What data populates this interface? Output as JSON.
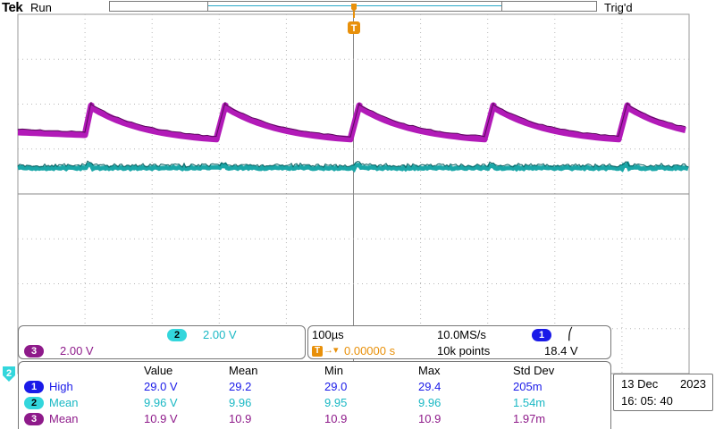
{
  "header": {
    "brand": "Tek",
    "run_state": "Run",
    "trigger_state": "Trig'd"
  },
  "markers": {
    "trigger": "T",
    "channel2_ref": "2"
  },
  "channel_panel": {
    "ch2_badge": "2",
    "ch2_scale": "2.00 V",
    "ch3_badge": "3",
    "ch3_scale": "2.00 V"
  },
  "timebase_panel": {
    "time_per_div": "100µs",
    "sample_rate": "10.0MS/s",
    "trigger_pos": "0.00000 s",
    "record_length": "10k points",
    "trig_source_badge": "1",
    "trig_slope": "⎛",
    "trig_level": "18.4 V"
  },
  "measurements": {
    "headers": [
      "Value",
      "Mean",
      "Min",
      "Max",
      "Std Dev"
    ],
    "rows": [
      {
        "badge": "1",
        "label": "High",
        "value": "29.0 V",
        "mean": "29.2",
        "min": "29.0",
        "max": "29.4",
        "std": "205m"
      },
      {
        "badge": "2",
        "label": "Mean",
        "value": "9.96 V",
        "mean": "9.96",
        "min": "9.95",
        "max": "9.96",
        "std": "1.54m"
      },
      {
        "badge": "3",
        "label": "Mean",
        "value": "10.9 V",
        "mean": "10.9",
        "min": "10.9",
        "max": "10.9",
        "std": "1.97m"
      }
    ]
  },
  "datetime": {
    "date": "13 Dec",
    "year": "2023",
    "time": "16: 05: 40"
  },
  "colors": {
    "ch1": "#1a1ae8",
    "ch2": "#1aa7a8",
    "ch3": "#b21ab8",
    "trigger": "#e8900a"
  }
}
